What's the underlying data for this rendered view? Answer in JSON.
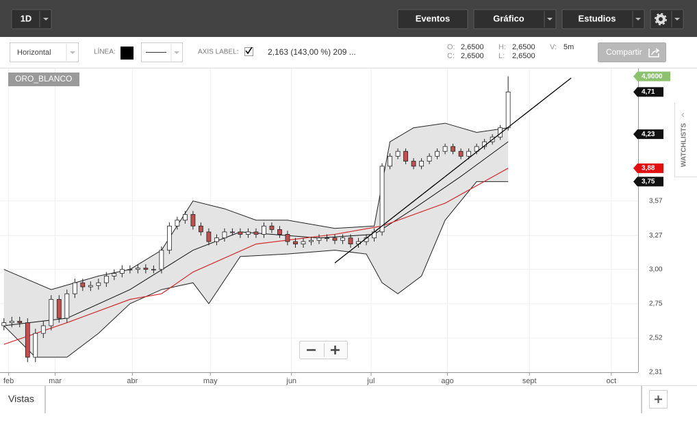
{
  "toolbar": {
    "interval": "1D",
    "buttons": [
      "Eventos",
      "Gráfico",
      "Estudios"
    ]
  },
  "drawing_bar": {
    "orientation": "Horizontal",
    "line_label": "LÍNEA:",
    "axis_label": "AXIS LABEL:",
    "measure": "2,163 (143,00 %) 209 ...",
    "quote": [
      {
        "key": "O:",
        "value": "2,6500"
      },
      {
        "key": "H:",
        "value": "2,6500"
      },
      {
        "key": "V:",
        "value": "5m"
      },
      {
        "key": "C:",
        "value": "2,6500"
      },
      {
        "key": "L:",
        "value": "2,6500"
      }
    ],
    "share": "Compartir"
  },
  "chart_data": {
    "type": "candlestick",
    "symbol": "ORO_BLANCO",
    "xlim": [
      -0.5,
      80.5
    ],
    "xticks": [
      {
        "value": 0.6,
        "label": "feb"
      },
      {
        "value": 6.5,
        "label": "mar"
      },
      {
        "value": 16.3,
        "label": "abr"
      },
      {
        "value": 26.2,
        "label": "may"
      },
      {
        "value": 36.5,
        "label": "jun"
      },
      {
        "value": 46.6,
        "label": "jul"
      },
      {
        "value": 56.3,
        "label": "ago"
      },
      {
        "value": 66.7,
        "label": "sept"
      },
      {
        "value": 77.1,
        "label": "oct"
      }
    ],
    "ylim": [
      2.31,
      5.0
    ],
    "log_scale": true,
    "grid": true,
    "yticks": [
      {
        "value": 2.31,
        "label": "2,31"
      },
      {
        "value": 2.52,
        "label": "2,52"
      },
      {
        "value": 2.75,
        "label": "2,75"
      },
      {
        "value": 3.0,
        "label": "3,00"
      },
      {
        "value": 3.27,
        "label": "3,27"
      },
      {
        "value": 3.57,
        "label": "3,57"
      }
    ],
    "up_color": "#ffffff",
    "down_color": "#c0504d",
    "open": [
      2.6,
      2.62,
      2.63,
      2.62,
      2.4,
      2.55,
      2.6,
      2.78,
      2.65,
      2.82,
      2.9,
      2.87,
      2.88,
      2.9,
      2.95,
      2.97,
      3.0,
      3.0,
      3.01,
      3.0,
      3.0,
      3.15,
      3.35,
      3.4,
      3.45,
      3.35,
      3.3,
      3.22,
      3.25,
      3.3,
      3.3,
      3.28,
      3.3,
      3.28,
      3.35,
      3.32,
      3.28,
      3.22,
      3.2,
      3.22,
      3.23,
      3.25,
      3.25,
      3.23,
      3.25,
      3.2,
      3.22,
      3.25,
      3.3,
      3.9,
      4.0,
      4.05,
      3.95,
      3.9,
      3.95,
      4.0,
      4.05,
      4.1,
      4.05,
      4.0,
      4.05,
      4.1,
      4.15,
      4.2,
      4.3
    ],
    "high": [
      2.65,
      2.66,
      2.66,
      2.65,
      2.58,
      2.63,
      2.81,
      2.81,
      2.85,
      2.93,
      2.93,
      2.91,
      2.93,
      2.98,
      3.0,
      3.03,
      3.03,
      3.04,
      3.04,
      3.03,
      3.18,
      3.38,
      3.43,
      3.48,
      3.48,
      3.38,
      3.33,
      3.28,
      3.33,
      3.33,
      3.33,
      3.33,
      3.33,
      3.38,
      3.38,
      3.35,
      3.31,
      3.25,
      3.25,
      3.26,
      3.28,
      3.28,
      3.28,
      3.28,
      3.28,
      3.25,
      3.28,
      3.33,
      3.93,
      4.03,
      4.08,
      4.08,
      3.98,
      3.98,
      4.03,
      4.08,
      4.13,
      4.13,
      4.08,
      4.08,
      4.13,
      4.18,
      4.23,
      4.33,
      4.9
    ],
    "low": [
      2.57,
      2.59,
      2.59,
      2.37,
      2.37,
      2.52,
      2.57,
      2.62,
      2.62,
      2.79,
      2.84,
      2.84,
      2.85,
      2.87,
      2.92,
      2.94,
      2.97,
      2.97,
      2.97,
      2.97,
      2.97,
      3.12,
      3.32,
      3.37,
      3.32,
      3.27,
      3.19,
      3.19,
      3.22,
      3.27,
      3.25,
      3.25,
      3.25,
      3.25,
      3.29,
      3.25,
      3.19,
      3.17,
      3.17,
      3.19,
      3.2,
      3.22,
      3.2,
      3.2,
      3.17,
      3.17,
      3.19,
      3.22,
      3.27,
      3.87,
      3.97,
      3.92,
      3.87,
      3.87,
      3.92,
      3.97,
      4.02,
      4.02,
      3.97,
      3.97,
      4.02,
      4.07,
      4.12,
      4.17,
      4.27
    ],
    "close": [
      2.62,
      2.63,
      2.62,
      2.4,
      2.55,
      2.6,
      2.78,
      2.65,
      2.82,
      2.9,
      2.87,
      2.88,
      2.9,
      2.95,
      2.97,
      3.0,
      3.0,
      3.01,
      3.0,
      3.0,
      3.15,
      3.35,
      3.4,
      3.45,
      3.35,
      3.3,
      3.22,
      3.25,
      3.3,
      3.3,
      3.28,
      3.3,
      3.28,
      3.35,
      3.32,
      3.28,
      3.22,
      3.2,
      3.22,
      3.23,
      3.25,
      3.25,
      3.23,
      3.25,
      3.2,
      3.22,
      3.25,
      3.3,
      3.9,
      4.0,
      4.05,
      3.95,
      3.9,
      3.95,
      4.0,
      4.05,
      4.1,
      4.05,
      4.0,
      4.05,
      4.1,
      4.15,
      4.2,
      4.3,
      4.71
    ],
    "band_color": "#e4e4e4",
    "upper_band": {
      "x": [
        0,
        6,
        12,
        16,
        20,
        24,
        28,
        32,
        36,
        42,
        47,
        49,
        52,
        56,
        60,
        64
      ],
      "values": [
        3.0,
        2.85,
        2.95,
        3.0,
        3.15,
        3.57,
        3.5,
        3.4,
        3.4,
        3.33,
        3.35,
        4.15,
        4.3,
        4.35,
        4.25,
        4.3
      ],
      "color": "#222222"
    },
    "lower_band": {
      "x": [
        0,
        4,
        8,
        12,
        16,
        20,
        24,
        26,
        30,
        36,
        42,
        46,
        48,
        50,
        53,
        56,
        60,
        64
      ],
      "values": [
        2.6,
        2.4,
        2.4,
        2.55,
        2.75,
        2.85,
        2.9,
        2.75,
        3.1,
        3.12,
        3.15,
        3.12,
        2.9,
        2.82,
        2.95,
        3.4,
        3.75,
        3.75
      ],
      "color": "#222222"
    },
    "middle_band": {
      "x": [
        0,
        8,
        16,
        24,
        30,
        40,
        47,
        52,
        58,
        64
      ],
      "values": [
        2.6,
        2.65,
        2.85,
        3.15,
        3.3,
        3.25,
        3.28,
        3.5,
        3.8,
        4.15
      ],
      "color": "#111111"
    },
    "moving_average": {
      "x": [
        0,
        8,
        16,
        20,
        24,
        32,
        42,
        48,
        56,
        64
      ],
      "values": [
        2.48,
        2.62,
        2.78,
        2.82,
        2.98,
        3.2,
        3.28,
        3.35,
        3.55,
        3.88
      ],
      "color": "#d42a2a"
    },
    "trendline": {
      "x": [
        42,
        72
      ],
      "values": [
        3.05,
        4.88
      ],
      "color": "#000000"
    },
    "price_tags": [
      {
        "value": 4.9,
        "label": "4,9000",
        "color": "#8cc26e"
      },
      {
        "value": 4.71,
        "label": "4,71",
        "color": "#111111"
      },
      {
        "value": 4.23,
        "label": "4,23",
        "color": "#111111"
      },
      {
        "value": 3.88,
        "label": "3,88",
        "color": "#e01010"
      },
      {
        "value": 3.75,
        "label": "3,75",
        "color": "#111111"
      }
    ]
  },
  "side": {
    "watchlists": "WATCHLISTS"
  },
  "footer": {
    "views": "Vistas"
  }
}
